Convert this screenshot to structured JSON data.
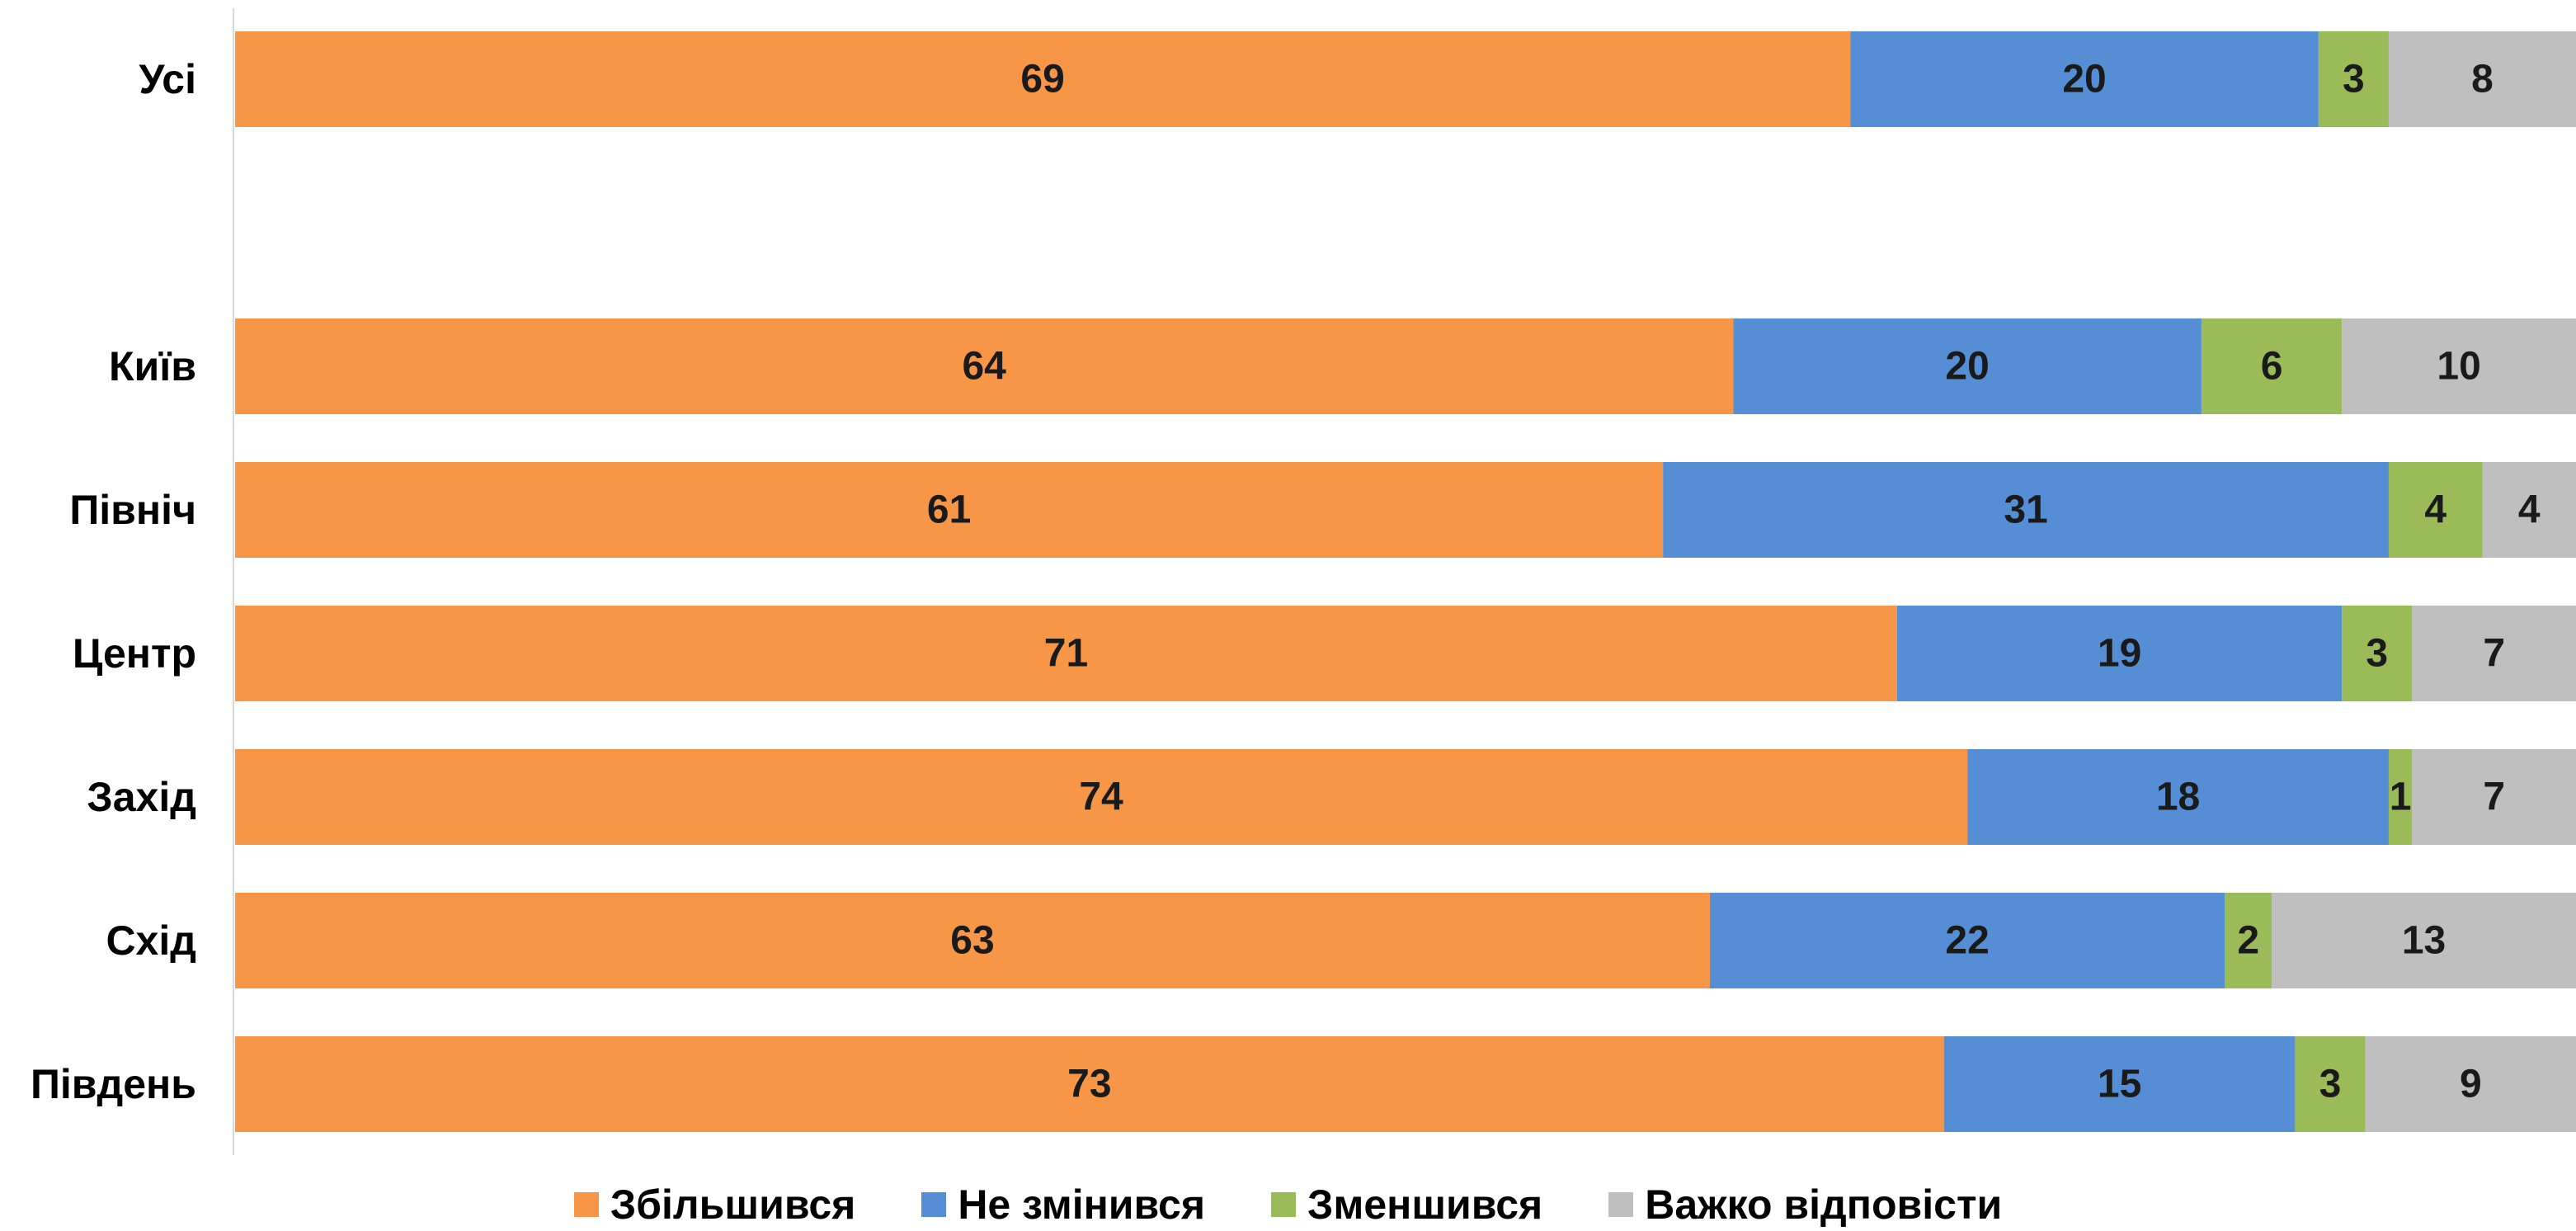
{
  "chart_data": {
    "type": "bar",
    "orientation": "horizontal",
    "stacked": true,
    "unit": "%",
    "categories": [
      "Усі",
      "Київ",
      "Північ",
      "Центр",
      "Захід",
      "Схід",
      "Південь"
    ],
    "gap_after_first_category": true,
    "series": [
      {
        "name": "Збільшився",
        "color": "#F79646",
        "values": [
          69,
          64,
          61,
          71,
          74,
          63,
          73
        ]
      },
      {
        "name": "Не змінився",
        "color": "#558ED5",
        "values": [
          20,
          20,
          31,
          19,
          18,
          22,
          15
        ]
      },
      {
        "name": "Зменшився",
        "color": "#9BBB59",
        "values": [
          3,
          6,
          4,
          3,
          1,
          2,
          3
        ]
      },
      {
        "name": "Важко відповісти",
        "color": "#BFBFBF",
        "values": [
          8,
          10,
          4,
          7,
          7,
          13,
          9
        ]
      }
    ],
    "data_labels": true,
    "xlim": [
      0,
      100
    ],
    "grid": false,
    "legend_position": "bottom"
  }
}
